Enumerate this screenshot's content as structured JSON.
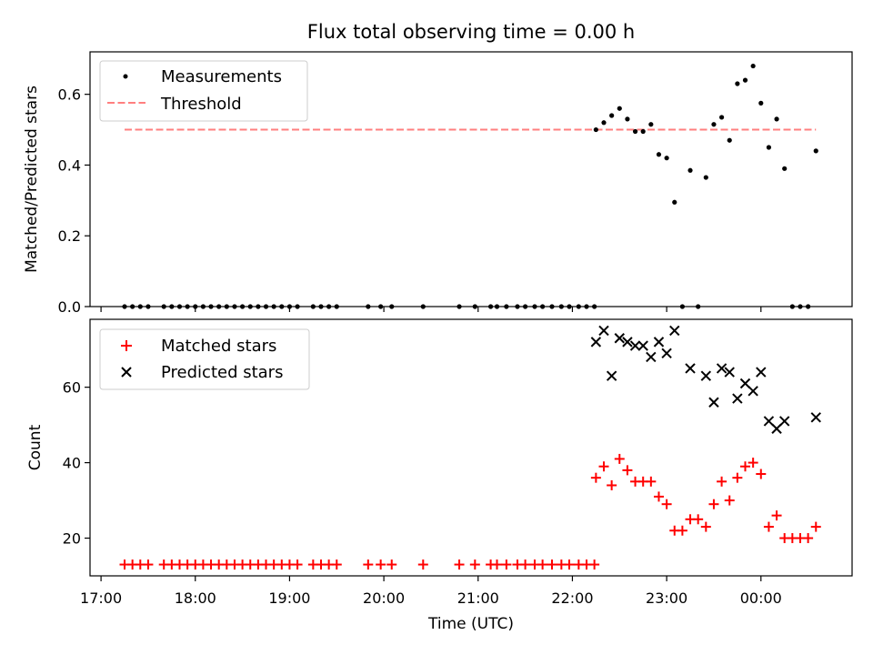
{
  "title": "Flux total observing time = 0.00 h",
  "chart_data": [
    {
      "type": "scatter",
      "panel": "top",
      "ylabel": "Matched/Predicted stars",
      "ylim": [
        0,
        0.72
      ],
      "yticks": [
        0.0,
        0.2,
        0.4,
        0.6
      ],
      "ytick_labels": [
        "0.0",
        "0.2",
        "0.4",
        "0.6"
      ],
      "legend_position": "top-left",
      "threshold": {
        "name": "Threshold",
        "value": 0.5,
        "x_range": [
          "17:15",
          "00:35"
        ],
        "color": "#ff7f7f"
      },
      "series": [
        {
          "name": "Measurements",
          "color": "#000000",
          "points": [
            [
              "17:15",
              0
            ],
            [
              "17:20",
              0
            ],
            [
              "17:25",
              0
            ],
            [
              "17:30",
              0
            ],
            [
              "17:40",
              0
            ],
            [
              "17:45",
              0
            ],
            [
              "17:50",
              0
            ],
            [
              "17:55",
              0
            ],
            [
              "18:00",
              0
            ],
            [
              "18:05",
              0
            ],
            [
              "18:10",
              0
            ],
            [
              "18:15",
              0
            ],
            [
              "18:20",
              0
            ],
            [
              "18:25",
              0
            ],
            [
              "18:30",
              0
            ],
            [
              "18:35",
              0
            ],
            [
              "18:40",
              0
            ],
            [
              "18:45",
              0
            ],
            [
              "18:50",
              0
            ],
            [
              "18:55",
              0
            ],
            [
              "19:00",
              0
            ],
            [
              "19:05",
              0
            ],
            [
              "19:15",
              0
            ],
            [
              "19:20",
              0
            ],
            [
              "19:25",
              0
            ],
            [
              "19:30",
              0
            ],
            [
              "19:50",
              0
            ],
            [
              "19:58",
              0
            ],
            [
              "20:05",
              0
            ],
            [
              "20:25",
              0
            ],
            [
              "20:48",
              0
            ],
            [
              "20:58",
              0
            ],
            [
              "21:08",
              0
            ],
            [
              "21:12",
              0
            ],
            [
              "21:18",
              0
            ],
            [
              "21:25",
              0
            ],
            [
              "21:30",
              0
            ],
            [
              "21:36",
              0
            ],
            [
              "21:41",
              0
            ],
            [
              "21:47",
              0
            ],
            [
              "21:53",
              0
            ],
            [
              "21:58",
              0
            ],
            [
              "22:04",
              0
            ],
            [
              "22:09",
              0
            ],
            [
              "22:14",
              0
            ],
            [
              "22:15",
              0.5
            ],
            [
              "22:20",
              0.52
            ],
            [
              "22:25",
              0.54
            ],
            [
              "22:30",
              0.56
            ],
            [
              "22:35",
              0.53
            ],
            [
              "22:40",
              0.495
            ],
            [
              "22:45",
              0.495
            ],
            [
              "22:50",
              0.515
            ],
            [
              "22:55",
              0.43
            ],
            [
              "23:00",
              0.42
            ],
            [
              "23:05",
              0.295
            ],
            [
              "23:10",
              0
            ],
            [
              "23:15",
              0.385
            ],
            [
              "23:20",
              0
            ],
            [
              "23:25",
              0.365
            ],
            [
              "23:30",
              0.515
            ],
            [
              "23:35",
              0.535
            ],
            [
              "23:40",
              0.47
            ],
            [
              "23:45",
              0.63
            ],
            [
              "23:50",
              0.64
            ],
            [
              "23:55",
              0.68
            ],
            [
              "00:00",
              0.575
            ],
            [
              "00:05",
              0.45
            ],
            [
              "00:10",
              0.53
            ],
            [
              "00:15",
              0.39
            ],
            [
              "00:20",
              0
            ],
            [
              "00:25",
              0
            ],
            [
              "00:30",
              0
            ],
            [
              "00:35",
              0.44
            ]
          ]
        }
      ]
    },
    {
      "type": "scatter",
      "panel": "bottom",
      "xlabel": "Time (UTC)",
      "ylabel": "Count",
      "ylim": [
        10,
        78
      ],
      "yticks": [
        20,
        40,
        60
      ],
      "xticks": [
        "17:00",
        "18:00",
        "19:00",
        "20:00",
        "21:00",
        "22:00",
        "23:00",
        "00:00"
      ],
      "legend_position": "top-left",
      "series": [
        {
          "name": "Matched stars",
          "marker": "+",
          "color": "#ff0000",
          "points": [
            [
              "17:15",
              13
            ],
            [
              "17:20",
              13
            ],
            [
              "17:25",
              13
            ],
            [
              "17:30",
              13
            ],
            [
              "17:40",
              13
            ],
            [
              "17:45",
              13
            ],
            [
              "17:50",
              13
            ],
            [
              "17:55",
              13
            ],
            [
              "18:00",
              13
            ],
            [
              "18:05",
              13
            ],
            [
              "18:10",
              13
            ],
            [
              "18:15",
              13
            ],
            [
              "18:20",
              13
            ],
            [
              "18:25",
              13
            ],
            [
              "18:30",
              13
            ],
            [
              "18:35",
              13
            ],
            [
              "18:40",
              13
            ],
            [
              "18:45",
              13
            ],
            [
              "18:50",
              13
            ],
            [
              "18:55",
              13
            ],
            [
              "19:00",
              13
            ],
            [
              "19:05",
              13
            ],
            [
              "19:15",
              13
            ],
            [
              "19:20",
              13
            ],
            [
              "19:25",
              13
            ],
            [
              "19:30",
              13
            ],
            [
              "19:50",
              13
            ],
            [
              "19:58",
              13
            ],
            [
              "20:05",
              13
            ],
            [
              "20:25",
              13
            ],
            [
              "20:48",
              13
            ],
            [
              "20:58",
              13
            ],
            [
              "21:08",
              13
            ],
            [
              "21:12",
              13
            ],
            [
              "21:18",
              13
            ],
            [
              "21:25",
              13
            ],
            [
              "21:30",
              13
            ],
            [
              "21:36",
              13
            ],
            [
              "21:41",
              13
            ],
            [
              "21:47",
              13
            ],
            [
              "21:53",
              13
            ],
            [
              "21:58",
              13
            ],
            [
              "22:04",
              13
            ],
            [
              "22:09",
              13
            ],
            [
              "22:14",
              13
            ],
            [
              "22:15",
              36
            ],
            [
              "22:20",
              39
            ],
            [
              "22:25",
              34
            ],
            [
              "22:30",
              41
            ],
            [
              "22:35",
              38
            ],
            [
              "22:40",
              35
            ],
            [
              "22:45",
              35
            ],
            [
              "22:50",
              35
            ],
            [
              "22:55",
              31
            ],
            [
              "23:00",
              29
            ],
            [
              "23:05",
              22
            ],
            [
              "23:10",
              22
            ],
            [
              "23:15",
              25
            ],
            [
              "23:20",
              25
            ],
            [
              "23:25",
              23
            ],
            [
              "23:30",
              29
            ],
            [
              "23:35",
              35
            ],
            [
              "23:40",
              30
            ],
            [
              "23:45",
              36
            ],
            [
              "23:50",
              39
            ],
            [
              "23:55",
              40
            ],
            [
              "00:00",
              37
            ],
            [
              "00:05",
              23
            ],
            [
              "00:10",
              26
            ],
            [
              "00:15",
              20
            ],
            [
              "00:20",
              20
            ],
            [
              "00:25",
              20
            ],
            [
              "00:30",
              20
            ],
            [
              "00:35",
              23
            ]
          ]
        },
        {
          "name": "Predicted stars",
          "marker": "x",
          "color": "#000000",
          "points": [
            [
              "22:15",
              72
            ],
            [
              "22:20",
              75
            ],
            [
              "22:25",
              63
            ],
            [
              "22:30",
              73
            ],
            [
              "22:35",
              72
            ],
            [
              "22:40",
              71
            ],
            [
              "22:45",
              71
            ],
            [
              "22:50",
              68
            ],
            [
              "22:55",
              72
            ],
            [
              "23:00",
              69
            ],
            [
              "23:05",
              75
            ],
            [
              "23:15",
              65
            ],
            [
              "23:25",
              63
            ],
            [
              "23:30",
              56
            ],
            [
              "23:35",
              65
            ],
            [
              "23:40",
              64
            ],
            [
              "23:45",
              57
            ],
            [
              "23:50",
              61
            ],
            [
              "23:55",
              59
            ],
            [
              "00:00",
              64
            ],
            [
              "00:05",
              51
            ],
            [
              "00:10",
              49
            ],
            [
              "00:15",
              51
            ],
            [
              "00:35",
              52
            ]
          ]
        }
      ]
    }
  ]
}
